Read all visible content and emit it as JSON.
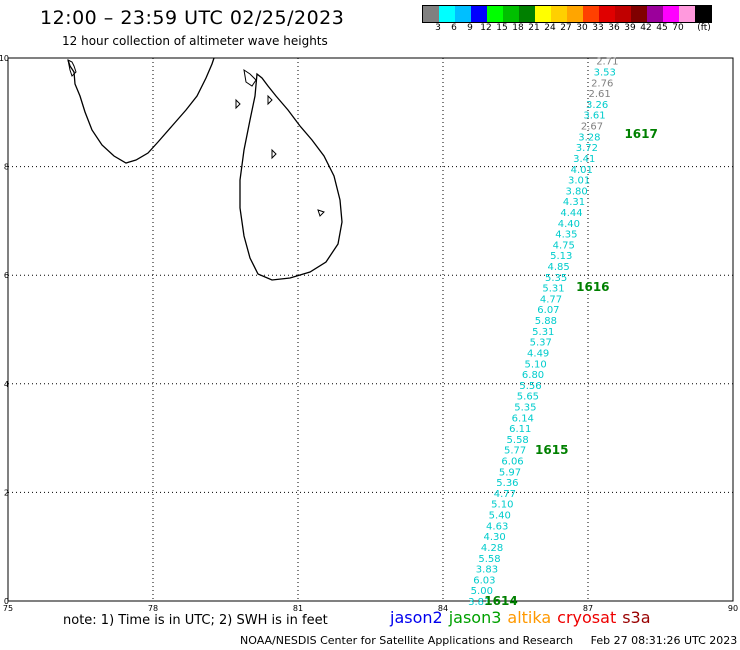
{
  "header": {
    "title": "12:00 – 23:59 UTC 02/25/2023",
    "subtitle": "12 hour collection of altimeter wave heights"
  },
  "scale": {
    "colors": [
      "#808080",
      "#00ffff",
      "#00bfff",
      "#0000ff",
      "#00ff00",
      "#00c000",
      "#008000",
      "#ffff00",
      "#ffd000",
      "#ffa500",
      "#ff4000",
      "#e00000",
      "#c00000",
      "#800000",
      "#9b009b",
      "#ff00ff",
      "#ff99dd",
      "#000000"
    ],
    "labels": [
      "3",
      "6",
      "9",
      "12",
      "15",
      "18",
      "21",
      "24",
      "27",
      "30",
      "33",
      "36",
      "39",
      "42",
      "45",
      "70"
    ],
    "unit": "(ft)"
  },
  "map": {
    "lon_range": [
      75,
      90
    ],
    "lat_range": [
      0,
      10
    ],
    "x_ticks": [
      "75",
      "78",
      "81",
      "84",
      "87",
      "90"
    ],
    "y_ticks": [
      "0",
      "2",
      "4",
      "6",
      "8",
      "10"
    ],
    "grid": "dotted",
    "coastline": "Sri Lanka and southern tip of India"
  },
  "chart_data": {
    "type": "scatter",
    "title": "12:00 – 23:59 UTC 02/25/2023",
    "subtitle": "12 hour collection of altimeter wave heights",
    "xlabel": "",
    "ylabel": "",
    "xlim": [
      75,
      90
    ],
    "ylim": [
      0,
      10
    ],
    "unit": "ft",
    "track": {
      "lat_start": 0.0,
      "lat_end": 9.95,
      "lon_start": 84.75,
      "lon_end": 87.4,
      "values": [
        {
          "v": "3.83",
          "c": "#00cccc"
        },
        {
          "v": "5.00",
          "c": "#00cccc"
        },
        {
          "v": "6.03",
          "c": "#00cccc"
        },
        {
          "v": "3.83",
          "c": "#00cccc"
        },
        {
          "v": "5.58",
          "c": "#00cccc"
        },
        {
          "v": "4.28",
          "c": "#00cccc"
        },
        {
          "v": "4.30",
          "c": "#00cccc"
        },
        {
          "v": "4.63",
          "c": "#00cccc"
        },
        {
          "v": "5.40",
          "c": "#00cccc"
        },
        {
          "v": "5.10",
          "c": "#00cccc"
        },
        {
          "v": "4.77",
          "c": "#00cccc"
        },
        {
          "v": "5.36",
          "c": "#00cccc"
        },
        {
          "v": "5.97",
          "c": "#00cccc"
        },
        {
          "v": "6.06",
          "c": "#00cccc"
        },
        {
          "v": "5.77",
          "c": "#00cccc"
        },
        {
          "v": "5.58",
          "c": "#00cccc"
        },
        {
          "v": "6.11",
          "c": "#00cccc"
        },
        {
          "v": "6.14",
          "c": "#00cccc"
        },
        {
          "v": "5.35",
          "c": "#00cccc"
        },
        {
          "v": "5.65",
          "c": "#00cccc"
        },
        {
          "v": "5.56",
          "c": "#00cccc"
        },
        {
          "v": "6.80",
          "c": "#00cccc"
        },
        {
          "v": "5.10",
          "c": "#00cccc"
        },
        {
          "v": "4.49",
          "c": "#00cccc"
        },
        {
          "v": "5.37",
          "c": "#00cccc"
        },
        {
          "v": "5.31",
          "c": "#00cccc"
        },
        {
          "v": "5.88",
          "c": "#00cccc"
        },
        {
          "v": "6.07",
          "c": "#00cccc"
        },
        {
          "v": "4.77",
          "c": "#00cccc"
        },
        {
          "v": "5.31",
          "c": "#00cccc"
        },
        {
          "v": "5.35",
          "c": "#00cccc"
        },
        {
          "v": "4.85",
          "c": "#00cccc"
        },
        {
          "v": "5.13",
          "c": "#00cccc"
        },
        {
          "v": "4.75",
          "c": "#00cccc"
        },
        {
          "v": "4.35",
          "c": "#00cccc"
        },
        {
          "v": "4.40",
          "c": "#00cccc"
        },
        {
          "v": "4.44",
          "c": "#00cccc"
        },
        {
          "v": "4.31",
          "c": "#00cccc"
        },
        {
          "v": "3.80",
          "c": "#00cccc"
        },
        {
          "v": "3.01",
          "c": "#00cccc"
        },
        {
          "v": "4.01",
          "c": "#00cccc"
        },
        {
          "v": "3.41",
          "c": "#00cccc"
        },
        {
          "v": "3.72",
          "c": "#00cccc"
        },
        {
          "v": "3.28",
          "c": "#00cccc"
        },
        {
          "v": "2.67",
          "c": "#808080"
        },
        {
          "v": "3.61",
          "c": "#00cccc"
        },
        {
          "v": "3.26",
          "c": "#00cccc"
        },
        {
          "v": "2.61",
          "c": "#808080"
        },
        {
          "v": "2.76",
          "c": "#808080"
        },
        {
          "v": "3.53",
          "c": "#00cccc"
        },
        {
          "v": "2.71",
          "c": "#808080"
        }
      ]
    },
    "time_labels": [
      {
        "text": "1614",
        "lat": 0.0,
        "lon": 85.2
      },
      {
        "text": "1615",
        "lat": 2.78,
        "lon": 86.25
      },
      {
        "text": "1616",
        "lat": 5.78,
        "lon": 87.1
      },
      {
        "text": "1617",
        "lat": 8.6,
        "lon": 88.1
      }
    ]
  },
  "footer": {
    "note": "note: 1) Time is in UTC; 2) SWH is in feet",
    "satellites": [
      {
        "name": "jason2",
        "color": "#0000ee"
      },
      {
        "name": "jason3",
        "color": "#00a000"
      },
      {
        "name": "altika",
        "color": "#ff9900"
      },
      {
        "name": "cryosat",
        "color": "#ee0000"
      },
      {
        "name": "s3a",
        "color": "#990000"
      }
    ],
    "credit": "NOAA/NESDIS Center for Satellite Applications and Research",
    "timestamp": "Feb 27 08:31:26 UTC 2023"
  }
}
